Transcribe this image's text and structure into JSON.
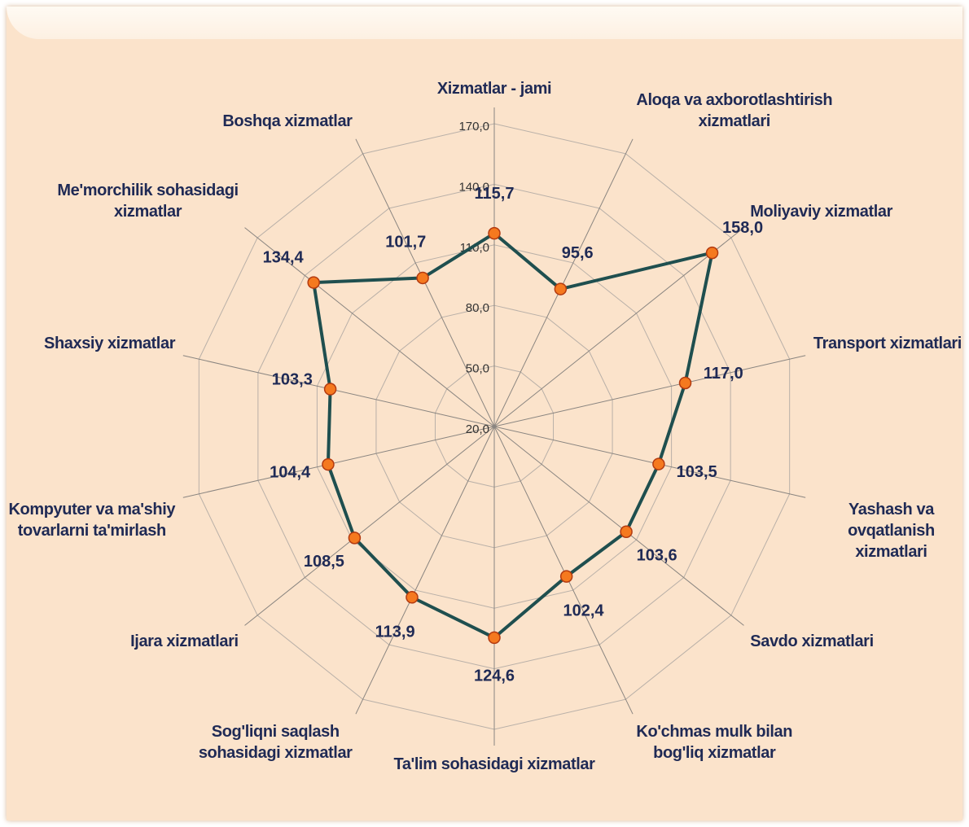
{
  "chart_data": {
    "type": "radar",
    "categories": [
      "Xizmatlar - jami",
      "Aloqa va axborotlashtirish\nxizmatlari",
      "Moliyaviy xizmatlar",
      "Transport xizmatlari",
      "Yashash va ovqatlanish\nxizmatlari",
      "Savdo xizmatlari",
      "Ko'chmas mulk bilan\nbog'liq xizmatlar",
      "Ta'lim sohasidagi xizmatlar",
      "Sog'liqni saqlash\nsohasidagi xizmatlar",
      "Ijara xizmatlari",
      "Kompyuter va ma'shiy\ntovarlarni ta'mirlash",
      "Shaxsiy xizmatlar",
      "Me'morchilik  sohasidagi\nxizmatlar",
      "Boshqa xizmatlar"
    ],
    "values": [
      115.7,
      95.6,
      158.0,
      117.0,
      103.5,
      103.6,
      102.4,
      124.6,
      113.9,
      108.5,
      104.4,
      103.3,
      134.4,
      101.7
    ],
    "value_labels": [
      "115,7",
      "95,6",
      "158,0",
      "117,0",
      "103,5",
      "103,6",
      "102,4",
      "124,6",
      "113,9",
      "108,5",
      "104,4",
      "103,3",
      "134,4",
      "101,7"
    ],
    "color": "#1f4f4f",
    "marker_color": "#f5791f",
    "ylim": [
      20,
      170
    ],
    "yticks": [
      {
        "value": 20,
        "label": "20,0"
      },
      {
        "value": 50,
        "label": "50,0"
      },
      {
        "value": 80,
        "label": "80,0"
      },
      {
        "value": 110,
        "label": "110,0"
      },
      {
        "value": 140,
        "label": "140,0"
      },
      {
        "value": 170,
        "label": "170,0"
      }
    ],
    "grid": true
  }
}
